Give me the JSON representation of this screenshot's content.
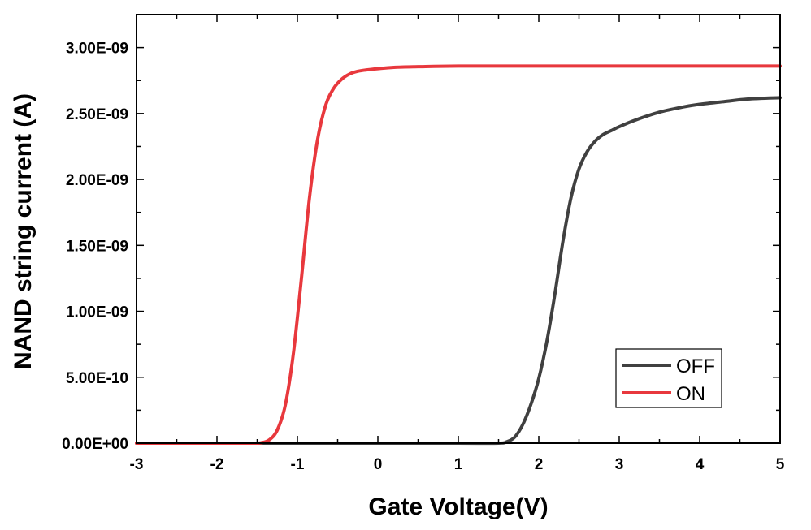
{
  "chart_data": {
    "type": "line",
    "title": "",
    "xlabel": "Gate Voltage(V)",
    "ylabel": "NAND string current (A)",
    "xlim": [
      -3,
      5
    ],
    "ylim": [
      0,
      3.25e-09
    ],
    "grid": false,
    "legend_position": "bottom-right",
    "x_ticks": [
      -3,
      -2,
      -1,
      0,
      1,
      2,
      3,
      4,
      5
    ],
    "x_tick_labels": [
      "-3",
      "-2",
      "-1",
      "0",
      "1",
      "2",
      "3",
      "4",
      "5"
    ],
    "y_ticks": [
      0,
      5e-10,
      1e-09,
      1.5e-09,
      2e-09,
      2.5e-09,
      3e-09
    ],
    "y_tick_labels": [
      "0.00E+00",
      "5.00E-10",
      "1.00E-09",
      "1.50E-09",
      "2.00E-09",
      "2.50E-09",
      "3.00E-09"
    ],
    "series": [
      {
        "name": "OFF",
        "color": "#404040",
        "x": [
          -3.0,
          -1.0,
          0.0,
          1.0,
          1.5,
          1.6,
          1.7,
          1.8,
          1.9,
          2.0,
          2.1,
          2.2,
          2.3,
          2.4,
          2.5,
          2.6,
          2.7,
          2.8,
          2.9,
          3.0,
          3.2,
          3.5,
          3.8,
          4.0,
          4.3,
          4.6,
          5.0
        ],
        "y": [
          0,
          0,
          0,
          0,
          0.0,
          1e-11,
          4.5e-11,
          1.4e-10,
          2.9e-10,
          4.9e-10,
          7.7e-10,
          1.13e-09,
          1.53e-09,
          1.86e-09,
          2.08e-09,
          2.21e-09,
          2.29e-09,
          2.34e-09,
          2.37e-09,
          2.4e-09,
          2.45e-09,
          2.51e-09,
          2.55e-09,
          2.57e-09,
          2.59e-09,
          2.61e-09,
          2.62e-09
        ]
      },
      {
        "name": "ON",
        "color": "#e8383d",
        "x": [
          -3.0,
          -2.0,
          -1.55,
          -1.45,
          -1.35,
          -1.25,
          -1.15,
          -1.05,
          -0.95,
          -0.85,
          -0.75,
          -0.65,
          -0.55,
          -0.45,
          -0.35,
          -0.25,
          -0.15,
          0.0,
          0.2,
          0.5,
          1.0,
          2.0,
          3.0,
          5.0
        ],
        "y": [
          0,
          0,
          0.0,
          3e-12,
          2.5e-11,
          1e-10,
          2.9e-10,
          6.8e-10,
          1.25e-09,
          1.86e-09,
          2.3e-09,
          2.56e-09,
          2.69e-09,
          2.76e-09,
          2.8e-09,
          2.82e-09,
          2.83e-09,
          2.84e-09,
          2.85e-09,
          2.855e-09,
          2.86e-09,
          2.86e-09,
          2.86e-09,
          2.86e-09
        ]
      }
    ]
  }
}
